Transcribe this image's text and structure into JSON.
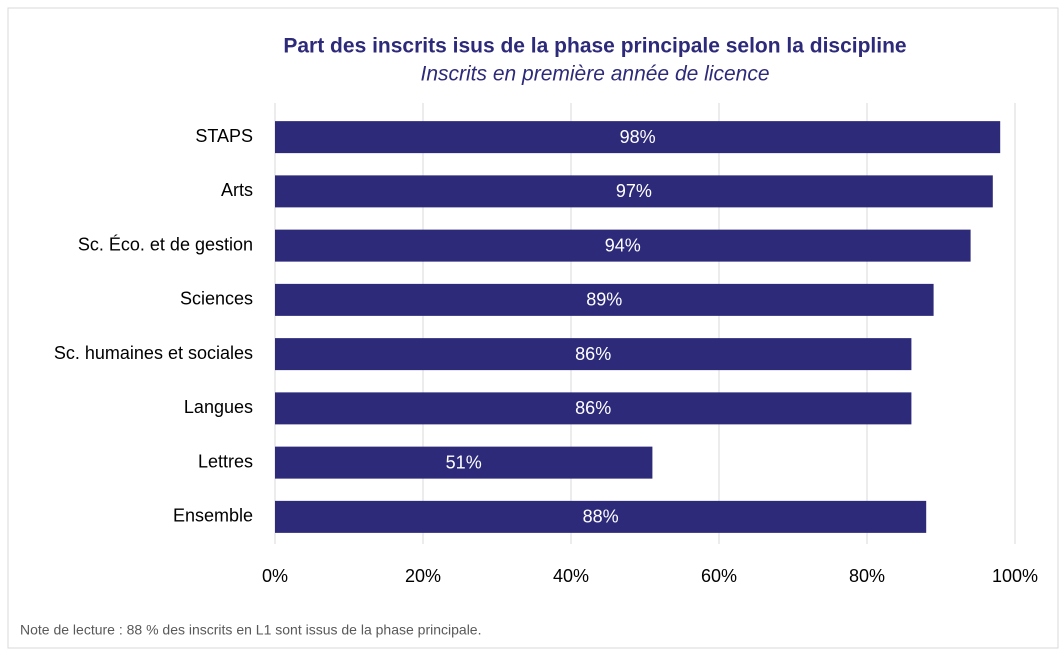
{
  "chart_data": {
    "type": "bar",
    "orientation": "horizontal",
    "title": "Part des inscrits isus de la phase principale selon la discipline",
    "subtitle": "Inscrits en première année de licence",
    "note": "Note de lecture : 88 % des inscrits en L1  sont issus de la phase principale.",
    "categories": [
      "STAPS",
      "Arts",
      "Sc. Éco. et de gestion",
      "Sciences",
      "Sc. humaines et sociales",
      "Langues",
      "Lettres",
      "Ensemble"
    ],
    "values": [
      98,
      97,
      94,
      89,
      86,
      86,
      51,
      88
    ],
    "value_labels": [
      "98%",
      "97%",
      "94%",
      "89%",
      "86%",
      "86%",
      "51%",
      "88%"
    ],
    "color": "#2d2a7a",
    "xlim": [
      0,
      100
    ],
    "xticks": [
      {
        "value": 0,
        "label": "0%"
      },
      {
        "value": 20,
        "label": "20%"
      },
      {
        "value": 40,
        "label": "40%"
      },
      {
        "value": 60,
        "label": "60%"
      },
      {
        "value": 80,
        "label": "80%"
      },
      {
        "value": 100,
        "label": "100%"
      }
    ],
    "grid": true
  }
}
